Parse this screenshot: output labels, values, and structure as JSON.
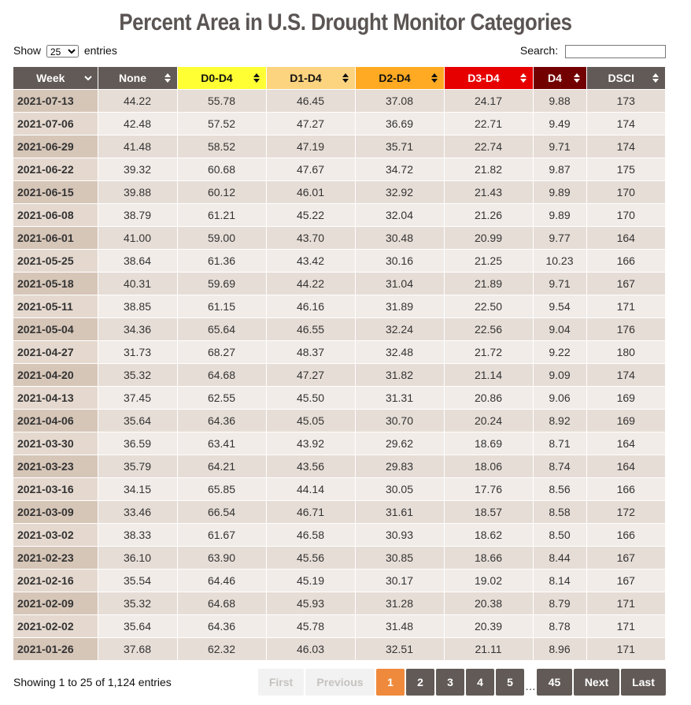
{
  "title": "Percent Area in U.S. Drought Monitor Categories",
  "length": {
    "prefix": "Show",
    "value": "25",
    "suffix": "entries"
  },
  "search": {
    "label": "Search:",
    "value": ""
  },
  "columns": [
    {
      "label": "Week",
      "bg": "#625a57",
      "fg": "#ffffff",
      "sort_icon": "chevron-down-icon"
    },
    {
      "label": "None",
      "bg": "#625a57",
      "fg": "#ffffff",
      "sort_icon": "sort-both-icon"
    },
    {
      "label": "D0-D4",
      "bg": "#ffff33",
      "fg": "#111111",
      "sort_icon": "sort-both-icon"
    },
    {
      "label": "D1-D4",
      "bg": "#fcd37f",
      "fg": "#111111",
      "sort_icon": "sort-both-icon"
    },
    {
      "label": "D2-D4",
      "bg": "#ffaa22",
      "fg": "#111111",
      "sort_icon": "sort-both-icon"
    },
    {
      "label": "D3-D4",
      "bg": "#e60000",
      "fg": "#ffffff",
      "sort_icon": "sort-both-icon"
    },
    {
      "label": "D4",
      "bg": "#730000",
      "fg": "#ffffff",
      "sort_icon": "sort-both-icon"
    },
    {
      "label": "DSCI",
      "bg": "#625a57",
      "fg": "#ffffff",
      "sort_icon": "sort-both-icon"
    }
  ],
  "rows": [
    [
      "2021-07-13",
      "44.22",
      "55.78",
      "46.45",
      "37.08",
      "24.17",
      "9.88",
      "173"
    ],
    [
      "2021-07-06",
      "42.48",
      "57.52",
      "47.27",
      "36.69",
      "22.71",
      "9.49",
      "174"
    ],
    [
      "2021-06-29",
      "41.48",
      "58.52",
      "47.19",
      "35.71",
      "22.74",
      "9.71",
      "174"
    ],
    [
      "2021-06-22",
      "39.32",
      "60.68",
      "47.67",
      "34.72",
      "21.82",
      "9.87",
      "175"
    ],
    [
      "2021-06-15",
      "39.88",
      "60.12",
      "46.01",
      "32.92",
      "21.43",
      "9.89",
      "170"
    ],
    [
      "2021-06-08",
      "38.79",
      "61.21",
      "45.22",
      "32.04",
      "21.26",
      "9.89",
      "170"
    ],
    [
      "2021-06-01",
      "41.00",
      "59.00",
      "43.70",
      "30.48",
      "20.99",
      "9.77",
      "164"
    ],
    [
      "2021-05-25",
      "38.64",
      "61.36",
      "43.42",
      "30.16",
      "21.25",
      "10.23",
      "166"
    ],
    [
      "2021-05-18",
      "40.31",
      "59.69",
      "44.22",
      "31.04",
      "21.89",
      "9.71",
      "167"
    ],
    [
      "2021-05-11",
      "38.85",
      "61.15",
      "46.16",
      "31.89",
      "22.50",
      "9.54",
      "171"
    ],
    [
      "2021-05-04",
      "34.36",
      "65.64",
      "46.55",
      "32.24",
      "22.56",
      "9.04",
      "176"
    ],
    [
      "2021-04-27",
      "31.73",
      "68.27",
      "48.37",
      "32.48",
      "21.72",
      "9.22",
      "180"
    ],
    [
      "2021-04-20",
      "35.32",
      "64.68",
      "47.27",
      "31.82",
      "21.14",
      "9.09",
      "174"
    ],
    [
      "2021-04-13",
      "37.45",
      "62.55",
      "45.50",
      "31.31",
      "20.86",
      "9.06",
      "169"
    ],
    [
      "2021-04-06",
      "35.64",
      "64.36",
      "45.05",
      "30.70",
      "20.24",
      "8.92",
      "169"
    ],
    [
      "2021-03-30",
      "36.59",
      "63.41",
      "43.92",
      "29.62",
      "18.69",
      "8.71",
      "164"
    ],
    [
      "2021-03-23",
      "35.79",
      "64.21",
      "43.56",
      "29.83",
      "18.06",
      "8.74",
      "164"
    ],
    [
      "2021-03-16",
      "34.15",
      "65.85",
      "44.14",
      "30.05",
      "17.76",
      "8.56",
      "166"
    ],
    [
      "2021-03-09",
      "33.46",
      "66.54",
      "46.71",
      "31.61",
      "18.57",
      "8.58",
      "172"
    ],
    [
      "2021-03-02",
      "38.33",
      "61.67",
      "46.58",
      "30.93",
      "18.62",
      "8.50",
      "166"
    ],
    [
      "2021-02-23",
      "36.10",
      "63.90",
      "45.56",
      "30.85",
      "18.66",
      "8.44",
      "167"
    ],
    [
      "2021-02-16",
      "35.54",
      "64.46",
      "45.19",
      "30.17",
      "19.02",
      "8.14",
      "167"
    ],
    [
      "2021-02-09",
      "35.32",
      "64.68",
      "45.93",
      "31.28",
      "20.38",
      "8.79",
      "171"
    ],
    [
      "2021-02-02",
      "35.64",
      "64.36",
      "45.78",
      "31.48",
      "20.39",
      "8.78",
      "171"
    ],
    [
      "2021-01-26",
      "37.68",
      "62.32",
      "46.03",
      "32.51",
      "21.11",
      "8.96",
      "171"
    ]
  ],
  "info": "Showing 1 to 25 of 1,124 entries",
  "pagination": {
    "first": "First",
    "previous": "Previous",
    "pages": [
      "1",
      "2",
      "3",
      "4",
      "5"
    ],
    "current": "1",
    "ellipsis": "…",
    "last_page": "45",
    "next": "Next",
    "last": "Last"
  }
}
